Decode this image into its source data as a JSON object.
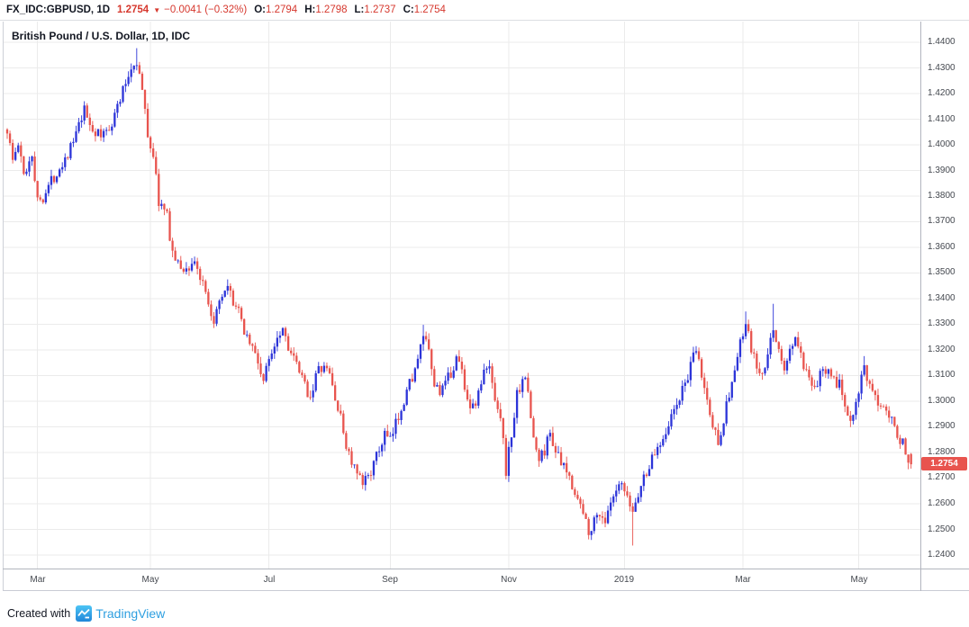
{
  "header": {
    "symbol": "FX_IDC:GBPUSD, 1D",
    "last_price": "1.2754",
    "direction_icon": "▼",
    "change": "−0.0041 (−0.32%)",
    "ohlc": [
      {
        "label": "O:",
        "value": "1.2794"
      },
      {
        "label": "H:",
        "value": "1.2798"
      },
      {
        "label": "L:",
        "value": "1.2737"
      },
      {
        "label": "C:",
        "value": "1.2754"
      }
    ]
  },
  "legend": {
    "title": "British Pound / U.S. Dollar, 1D, IDC"
  },
  "footer": {
    "created_with": "Created with",
    "brand": "TradingView"
  },
  "colors": {
    "up": "#2c34d8",
    "down": "#e8544e",
    "text_red": "#d6382e",
    "text_dark": "#131722",
    "grid": "#ebebeb",
    "axis_border": "#b2b5be",
    "axis_text": "#44484f",
    "brand_blue": "#2e9fe0",
    "logo_top": "#4cc4f5",
    "logo_bottom": "#2186d8"
  },
  "chart_data": {
    "type": "candlestick",
    "title": "British Pound / U.S. Dollar, 1D, IDC",
    "symbol": "FX_IDC:GBPUSD",
    "interval": "1D",
    "exchange": "IDC",
    "legend_note": "Daily GBP/USD candles, ~Feb 2018 to ~May 2019; blue = up day, red = down day",
    "last_bar": {
      "open": 1.2794,
      "high": 1.2798,
      "low": 1.2737,
      "close": 1.2754
    },
    "y_axis": {
      "min": 1.24,
      "max": 1.44,
      "step": 0.01,
      "last_price_label": "1.2754",
      "labels": [
        "1.4400",
        "1.4300",
        "1.4200",
        "1.4100",
        "1.4000",
        "1.3900",
        "1.3800",
        "1.3700",
        "1.3600",
        "1.3500",
        "1.3400",
        "1.3300",
        "1.3200",
        "1.3100",
        "1.3000",
        "1.2900",
        "1.2800",
        "1.2700",
        "1.2600",
        "1.2500",
        "1.2400"
      ]
    },
    "x_axis": {
      "ticks": [
        {
          "i": 11,
          "label": "Mar"
        },
        {
          "i": 52,
          "label": "May"
        },
        {
          "i": 95,
          "label": "Jul"
        },
        {
          "i": 139,
          "label": "Sep"
        },
        {
          "i": 182,
          "label": "Nov"
        },
        {
          "i": 224,
          "label": "2019"
        },
        {
          "i": 267,
          "label": "Mar"
        },
        {
          "i": 309,
          "label": "May"
        }
      ],
      "grid": true
    },
    "n_bars": 329,
    "seed": 1337,
    "noise": {
      "body": 0.005,
      "wick": 0.0026
    },
    "anchors": [
      [
        0,
        1.406
      ],
      [
        2,
        1.394
      ],
      [
        4,
        1.4
      ],
      [
        6,
        1.388
      ],
      [
        9,
        1.397
      ],
      [
        11,
        1.378
      ],
      [
        13,
        1.38
      ],
      [
        16,
        1.386
      ],
      [
        20,
        1.393
      ],
      [
        24,
        1.401
      ],
      [
        28,
        1.413
      ],
      [
        31,
        1.406
      ],
      [
        34,
        1.403
      ],
      [
        38,
        1.409
      ],
      [
        42,
        1.421
      ],
      [
        45,
        1.43
      ],
      [
        47,
        1.433
      ],
      [
        49,
        1.421
      ],
      [
        51,
        1.404
      ],
      [
        53,
        1.396
      ],
      [
        55,
        1.378
      ],
      [
        58,
        1.372
      ],
      [
        60,
        1.358
      ],
      [
        62,
        1.353
      ],
      [
        65,
        1.351
      ],
      [
        68,
        1.355
      ],
      [
        70,
        1.348
      ],
      [
        72,
        1.341
      ],
      [
        74,
        1.331
      ],
      [
        76,
        1.334
      ],
      [
        78,
        1.34
      ],
      [
        80,
        1.343
      ],
      [
        83,
        1.337
      ],
      [
        86,
        1.328
      ],
      [
        89,
        1.321
      ],
      [
        91,
        1.315
      ],
      [
        93,
        1.308
      ],
      [
        96,
        1.32
      ],
      [
        98,
        1.326
      ],
      [
        100,
        1.329
      ],
      [
        102,
        1.322
      ],
      [
        104,
        1.316
      ],
      [
        106,
        1.311
      ],
      [
        108,
        1.306
      ],
      [
        110,
        1.302
      ],
      [
        112,
        1.31
      ],
      [
        114,
        1.313
      ],
      [
        117,
        1.311
      ],
      [
        119,
        1.301
      ],
      [
        121,
        1.293
      ],
      [
        123,
        1.283
      ],
      [
        125,
        1.276
      ],
      [
        127,
        1.271
      ],
      [
        129,
        1.267
      ],
      [
        131,
        1.272
      ],
      [
        133,
        1.275
      ],
      [
        135,
        1.281
      ],
      [
        137,
        1.287
      ],
      [
        139,
        1.284
      ],
      [
        141,
        1.291
      ],
      [
        143,
        1.298
      ],
      [
        145,
        1.304
      ],
      [
        147,
        1.31
      ],
      [
        149,
        1.315
      ],
      [
        151,
        1.326
      ],
      [
        153,
        1.318
      ],
      [
        155,
        1.306
      ],
      [
        158,
        1.304
      ],
      [
        161,
        1.311
      ],
      [
        163,
        1.317
      ],
      [
        165,
        1.312
      ],
      [
        167,
        1.301
      ],
      [
        169,
        1.297
      ],
      [
        171,
        1.303
      ],
      [
        173,
        1.311
      ],
      [
        175,
        1.313
      ],
      [
        177,
        1.302
      ],
      [
        179,
        1.295
      ],
      [
        181,
        1.273
      ],
      [
        183,
        1.287
      ],
      [
        185,
        1.302
      ],
      [
        187,
        1.31
      ],
      [
        189,
        1.304
      ],
      [
        191,
        1.285
      ],
      [
        193,
        1.277
      ],
      [
        195,
        1.281
      ],
      [
        197,
        1.288
      ],
      [
        199,
        1.281
      ],
      [
        201,
        1.275
      ],
      [
        203,
        1.272
      ],
      [
        205,
        1.268
      ],
      [
        207,
        1.262
      ],
      [
        209,
        1.256
      ],
      [
        211,
        1.25
      ],
      [
        213,
        1.253
      ],
      [
        215,
        1.257
      ],
      [
        217,
        1.253
      ],
      [
        219,
        1.259
      ],
      [
        221,
        1.264
      ],
      [
        223,
        1.267
      ],
      [
        225,
        1.261
      ],
      [
        227,
        1.257
      ],
      [
        229,
        1.264
      ],
      [
        231,
        1.27
      ],
      [
        233,
        1.275
      ],
      [
        236,
        1.282
      ],
      [
        239,
        1.289
      ],
      [
        242,
        1.296
      ],
      [
        245,
        1.304
      ],
      [
        248,
        1.313
      ],
      [
        250,
        1.32
      ],
      [
        252,
        1.31
      ],
      [
        254,
        1.3
      ],
      [
        256,
        1.29
      ],
      [
        258,
        1.285
      ],
      [
        260,
        1.293
      ],
      [
        262,
        1.303
      ],
      [
        264,
        1.312
      ],
      [
        266,
        1.322
      ],
      [
        268,
        1.33
      ],
      [
        270,
        1.32
      ],
      [
        272,
        1.313
      ],
      [
        274,
        1.309
      ],
      [
        276,
        1.317
      ],
      [
        278,
        1.329
      ],
      [
        280,
        1.32
      ],
      [
        282,
        1.311
      ],
      [
        284,
        1.32
      ],
      [
        286,
        1.325
      ],
      [
        288,
        1.317
      ],
      [
        290,
        1.31
      ],
      [
        292,
        1.304
      ],
      [
        294,
        1.307
      ],
      [
        296,
        1.312
      ],
      [
        298,
        1.314
      ],
      [
        300,
        1.309
      ],
      [
        302,
        1.306
      ],
      [
        304,
        1.299
      ],
      [
        306,
        1.293
      ],
      [
        308,
        1.301
      ],
      [
        310,
        1.309
      ],
      [
        311,
        1.313
      ],
      [
        312,
        1.307
      ],
      [
        314,
        1.302
      ],
      [
        316,
        1.299
      ],
      [
        318,
        1.3
      ],
      [
        320,
        1.296
      ],
      [
        322,
        1.291
      ],
      [
        324,
        1.285
      ],
      [
        326,
        1.281
      ],
      [
        328,
        1.2754
      ]
    ],
    "specials": [
      {
        "i": 47,
        "high": 1.4377
      },
      {
        "i": 151,
        "high": 1.3298
      },
      {
        "i": 227,
        "low": 1.2437
      },
      {
        "i": 268,
        "high": 1.335
      },
      {
        "i": 278,
        "high": 1.338
      },
      {
        "i": 311,
        "high": 1.3176
      }
    ]
  }
}
